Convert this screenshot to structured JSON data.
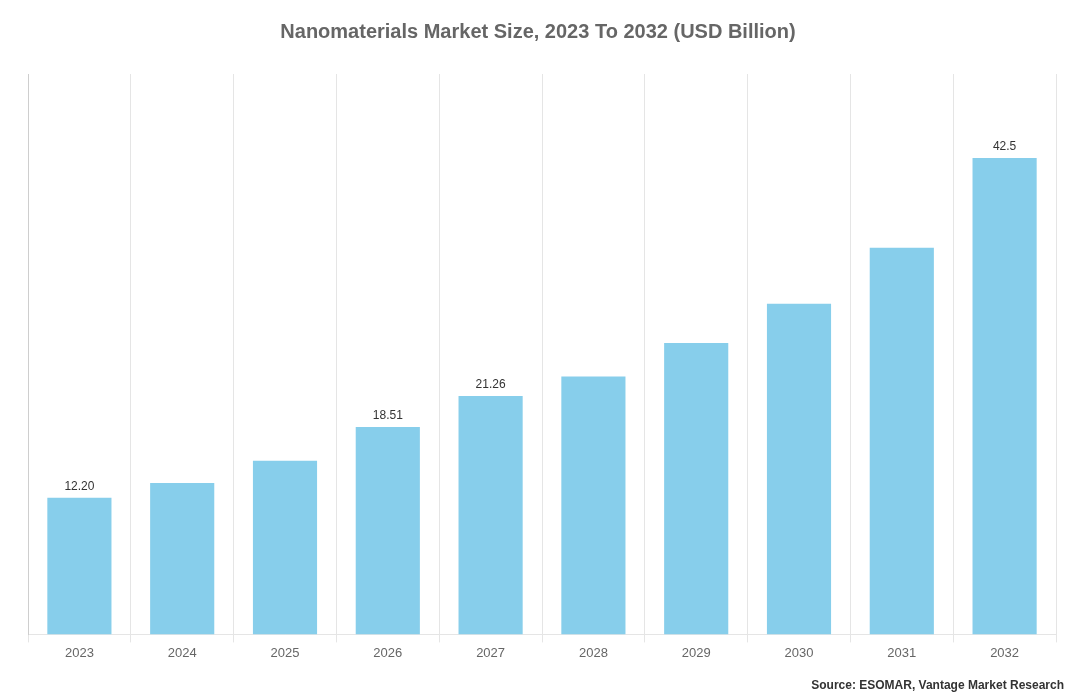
{
  "chart_data": {
    "type": "bar",
    "title": "Nanomaterials Market Size, 2023 To 2032 (USD Billion)",
    "categories": [
      "2023",
      "2024",
      "2025",
      "2026",
      "2027",
      "2028",
      "2029",
      "2030",
      "2031",
      "2032"
    ],
    "values": [
      12.2,
      13.5,
      15.5,
      18.51,
      21.26,
      23.0,
      26.0,
      29.5,
      34.5,
      42.5
    ],
    "value_labels": [
      "12.20",
      null,
      null,
      "18.51",
      "21.26",
      null,
      null,
      null,
      null,
      "42.5"
    ],
    "data_labels": true,
    "color": "#87CEEB",
    "ylim": [
      0,
      50
    ],
    "grid": "x",
    "tick_labels": "x",
    "annotation": "Source: ESOMAR, Vantage Market Research"
  }
}
